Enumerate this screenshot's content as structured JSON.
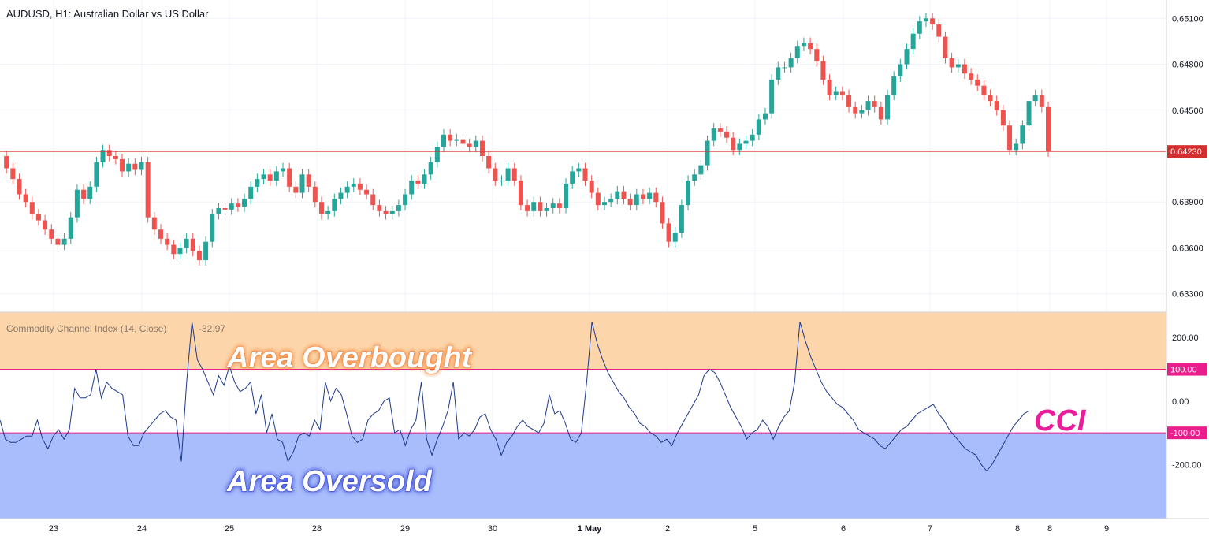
{
  "header": {
    "symbol_title": "AUDUSD, H1: Australian Dollar vs US Dollar"
  },
  "indicator": {
    "title": "Commodity Channel Index (14, Close)",
    "value": "-32.97"
  },
  "annotations": {
    "overbought": "Area Overbought",
    "oversold": "Area Oversold",
    "cci": "CCI"
  },
  "price_axis": {
    "ticks": [
      "0.65100",
      "0.64800",
      "0.64500",
      "0.63900",
      "0.63600",
      "0.63300"
    ],
    "current_price": "0.64230"
  },
  "cci_axis": {
    "ticks": [
      "200.00",
      "0.00",
      "-200.00"
    ],
    "upper_level": "100.00",
    "lower_level": "-100.00"
  },
  "time_axis": {
    "labels": [
      "23",
      "24",
      "25",
      "28",
      "29",
      "30",
      "1 May",
      "2",
      "5",
      "6",
      "7",
      "8",
      "8",
      "9"
    ]
  },
  "colors": {
    "up": "#26a69a",
    "down": "#ef5350",
    "cci_line": "#1e3a8a",
    "overbought_fill": "#fdd5aa",
    "oversold_fill": "#a9bcfb",
    "level_line": "#e91e8c",
    "price_line": "#d32f2f",
    "cci_label": "#e91e9a"
  },
  "chart_data": {
    "type": "candlestick+line",
    "price": {
      "ylim": [
        0.6318,
        0.6522
      ],
      "current": 0.6423,
      "close_path": [
        [
          0,
          0.642
        ],
        [
          4,
          0.6412
        ],
        [
          8,
          0.6405
        ],
        [
          12,
          0.6395
        ],
        [
          16,
          0.639
        ],
        [
          20,
          0.6382
        ],
        [
          24,
          0.6378
        ],
        [
          28,
          0.6372
        ],
        [
          32,
          0.6366
        ],
        [
          36,
          0.6362
        ],
        [
          40,
          0.6366
        ],
        [
          44,
          0.638
        ],
        [
          48,
          0.6398
        ],
        [
          52,
          0.6392
        ],
        [
          56,
          0.64
        ],
        [
          60,
          0.6416
        ],
        [
          64,
          0.6424
        ],
        [
          68,
          0.642
        ],
        [
          72,
          0.6418
        ],
        [
          76,
          0.641
        ],
        [
          80,
          0.6415
        ],
        [
          84,
          0.6411
        ],
        [
          88,
          0.6416
        ],
        [
          92,
          0.638
        ],
        [
          96,
          0.6372
        ],
        [
          100,
          0.6366
        ],
        [
          104,
          0.6362
        ],
        [
          108,
          0.6356
        ],
        [
          112,
          0.636
        ],
        [
          116,
          0.6366
        ],
        [
          120,
          0.6358
        ],
        [
          124,
          0.6352
        ],
        [
          128,
          0.6364
        ],
        [
          132,
          0.6382
        ],
        [
          136,
          0.6386
        ],
        [
          140,
          0.6385
        ],
        [
          144,
          0.6389
        ],
        [
          148,
          0.6387
        ],
        [
          152,
          0.6392
        ],
        [
          156,
          0.64
        ],
        [
          160,
          0.6405
        ],
        [
          164,
          0.6408
        ],
        [
          168,
          0.6404
        ],
        [
          172,
          0.641
        ],
        [
          176,
          0.6412
        ],
        [
          180,
          0.64
        ],
        [
          184,
          0.6396
        ],
        [
          188,
          0.6408
        ],
        [
          192,
          0.64
        ],
        [
          196,
          0.639
        ],
        [
          200,
          0.6382
        ],
        [
          204,
          0.6384
        ],
        [
          208,
          0.6392
        ],
        [
          212,
          0.6396
        ],
        [
          216,
          0.64
        ],
        [
          220,
          0.6402
        ],
        [
          224,
          0.6398
        ],
        [
          228,
          0.6395
        ],
        [
          232,
          0.6388
        ],
        [
          236,
          0.6384
        ],
        [
          240,
          0.6382
        ],
        [
          244,
          0.6384
        ],
        [
          248,
          0.6388
        ],
        [
          252,
          0.6395
        ],
        [
          256,
          0.6404
        ],
        [
          260,
          0.6402
        ],
        [
          264,
          0.6408
        ],
        [
          268,
          0.6416
        ],
        [
          272,
          0.6426
        ],
        [
          276,
          0.6434
        ],
        [
          280,
          0.643
        ],
        [
          284,
          0.6431
        ],
        [
          288,
          0.6428
        ],
        [
          292,
          0.6426
        ],
        [
          296,
          0.643
        ],
        [
          300,
          0.642
        ],
        [
          304,
          0.6412
        ],
        [
          308,
          0.6404
        ],
        [
          312,
          0.6404
        ],
        [
          316,
          0.6412
        ],
        [
          320,
          0.6404
        ],
        [
          324,
          0.6388
        ],
        [
          328,
          0.6384
        ],
        [
          332,
          0.639
        ],
        [
          336,
          0.6384
        ],
        [
          340,
          0.6386
        ],
        [
          344,
          0.6389
        ],
        [
          348,
          0.6386
        ],
        [
          352,
          0.6402
        ],
        [
          356,
          0.641
        ],
        [
          360,
          0.6412
        ],
        [
          364,
          0.6404
        ],
        [
          368,
          0.6396
        ],
        [
          372,
          0.6388
        ],
        [
          376,
          0.639
        ],
        [
          380,
          0.6392
        ],
        [
          384,
          0.6397
        ],
        [
          388,
          0.6392
        ],
        [
          392,
          0.6388
        ],
        [
          396,
          0.6395
        ],
        [
          400,
          0.6392
        ],
        [
          404,
          0.6396
        ],
        [
          408,
          0.639
        ],
        [
          412,
          0.6376
        ],
        [
          416,
          0.6364
        ],
        [
          420,
          0.637
        ],
        [
          424,
          0.6388
        ],
        [
          428,
          0.6404
        ],
        [
          432,
          0.6408
        ],
        [
          436,
          0.6414
        ],
        [
          440,
          0.643
        ],
        [
          444,
          0.6438
        ],
        [
          448,
          0.6436
        ],
        [
          452,
          0.6432
        ],
        [
          456,
          0.6424
        ],
        [
          460,
          0.6428
        ],
        [
          464,
          0.643
        ],
        [
          468,
          0.6434
        ],
        [
          472,
          0.6444
        ],
        [
          476,
          0.6448
        ],
        [
          480,
          0.647
        ],
        [
          484,
          0.6478
        ],
        [
          488,
          0.6478
        ],
        [
          492,
          0.6484
        ],
        [
          496,
          0.6492
        ],
        [
          500,
          0.6494
        ],
        [
          504,
          0.649
        ],
        [
          508,
          0.6482
        ],
        [
          512,
          0.647
        ],
        [
          516,
          0.646
        ],
        [
          520,
          0.6462
        ],
        [
          524,
          0.646
        ],
        [
          528,
          0.6452
        ],
        [
          532,
          0.6448
        ],
        [
          536,
          0.645
        ],
        [
          540,
          0.6456
        ],
        [
          544,
          0.6452
        ],
        [
          548,
          0.6444
        ],
        [
          552,
          0.646
        ],
        [
          556,
          0.6472
        ],
        [
          560,
          0.648
        ],
        [
          564,
          0.649
        ],
        [
          568,
          0.65
        ],
        [
          572,
          0.6508
        ],
        [
          576,
          0.651
        ],
        [
          580,
          0.6506
        ],
        [
          584,
          0.6498
        ],
        [
          588,
          0.6484
        ],
        [
          592,
          0.6478
        ],
        [
          596,
          0.648
        ],
        [
          600,
          0.6474
        ],
        [
          604,
          0.647
        ],
        [
          608,
          0.6466
        ],
        [
          612,
          0.646
        ],
        [
          616,
          0.6456
        ],
        [
          620,
          0.645
        ],
        [
          624,
          0.644
        ],
        [
          628,
          0.6424
        ],
        [
          632,
          0.6428
        ],
        [
          636,
          0.644
        ],
        [
          640,
          0.6456
        ],
        [
          644,
          0.646
        ],
        [
          648,
          0.6452
        ],
        [
          652,
          0.6423
        ]
      ]
    },
    "cci": {
      "ylim": [
        -370,
        280
      ],
      "levels": [
        100,
        -100
      ],
      "current": -32.97,
      "values": [
        -60,
        -120,
        -130,
        -130,
        -120,
        -110,
        -110,
        -60,
        -120,
        -150,
        -110,
        -90,
        -120,
        -90,
        40,
        10,
        10,
        20,
        100,
        10,
        60,
        40,
        30,
        20,
        -110,
        -140,
        -140,
        -100,
        -80,
        -60,
        -40,
        -30,
        -50,
        -60,
        -190,
        60,
        250,
        130,
        100,
        60,
        20,
        80,
        50,
        110,
        60,
        30,
        40,
        60,
        -40,
        20,
        -100,
        -40,
        -120,
        -130,
        -190,
        -160,
        -110,
        -100,
        -110,
        -60,
        -90,
        60,
        0,
        40,
        20,
        -40,
        -110,
        -130,
        -120,
        -60,
        -40,
        -30,
        0,
        10,
        -100,
        -90,
        -140,
        -90,
        -60,
        60,
        -120,
        -170,
        -120,
        -80,
        -30,
        60,
        -120,
        -100,
        -110,
        -90,
        -50,
        -40,
        -90,
        -120,
        -170,
        -130,
        -110,
        -80,
        -60,
        -80,
        -90,
        -100,
        -70,
        20,
        -40,
        -30,
        -70,
        -120,
        -130,
        -100,
        60,
        250,
        180,
        130,
        90,
        60,
        30,
        10,
        -20,
        -40,
        -70,
        -80,
        -100,
        -110,
        -130,
        -120,
        -140,
        -100,
        -70,
        -40,
        -10,
        20,
        80,
        100,
        90,
        60,
        20,
        -20,
        -50,
        -80,
        -120,
        -100,
        -90,
        -60,
        -80,
        -120,
        -80,
        -50,
        -30,
        60,
        250,
        190,
        140,
        100,
        60,
        30,
        10,
        -10,
        -20,
        -40,
        -60,
        -90,
        -100,
        -110,
        -120,
        -140,
        -150,
        -130,
        -110,
        -90,
        -80,
        -60,
        -40,
        -30,
        -20,
        -10,
        -40,
        -60,
        -90,
        -110,
        -130,
        -150,
        -160,
        -170,
        -200,
        -220,
        -200,
        -170,
        -140,
        -110,
        -80,
        -60,
        -40,
        -30
      ]
    },
    "xlabels": [
      "23",
      "24",
      "25",
      "28",
      "29",
      "30",
      "1 May",
      "2",
      "5",
      "6",
      "7",
      "8",
      "8",
      "9"
    ]
  }
}
